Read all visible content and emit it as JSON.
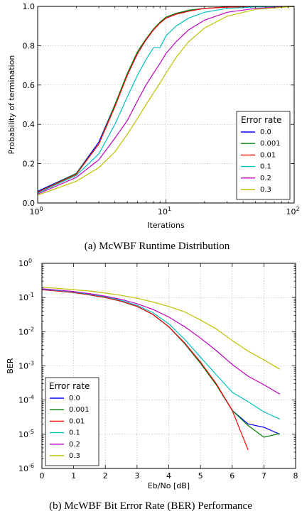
{
  "chart_data": [
    {
      "type": "line",
      "xscale": "log",
      "xlim": [
        1,
        100
      ],
      "ylim": [
        0,
        1
      ],
      "xlabel": "Iterations",
      "ylabel": "Probability of termination",
      "xticks": [
        1,
        10,
        100
      ],
      "xtick_labels": [
        [
          "10",
          "0"
        ],
        [
          "10",
          "1"
        ],
        [
          "10",
          "2"
        ]
      ],
      "yticks": [
        0,
        0.2,
        0.4,
        0.6,
        0.8,
        1.0
      ],
      "ytick_labels": [
        "0.0",
        "0.2",
        "0.4",
        "0.6",
        "0.8",
        "1.0"
      ],
      "grid": true,
      "legend_placement": "lower-right",
      "legend_title": "Error rate",
      "caption": "(a) McWBF Runtime Distribution",
      "series": [
        {
          "name": "0.0",
          "color": "#0000ff",
          "x": [
            1,
            2,
            3,
            4,
            5,
            6,
            7,
            8,
            9,
            10,
            12,
            15,
            20,
            30,
            50,
            100
          ],
          "y": [
            0.06,
            0.15,
            0.31,
            0.5,
            0.65,
            0.76,
            0.83,
            0.88,
            0.92,
            0.94,
            0.96,
            0.98,
            0.99,
            0.997,
            0.999,
            1.0
          ]
        },
        {
          "name": "0.001",
          "color": "#008000",
          "x": [
            1,
            2,
            3,
            4,
            5,
            6,
            7,
            8,
            9,
            10,
            12,
            15,
            20,
            30,
            50,
            100
          ],
          "y": [
            0.055,
            0.15,
            0.3,
            0.5,
            0.66,
            0.77,
            0.835,
            0.885,
            0.92,
            0.945,
            0.965,
            0.98,
            0.99,
            0.997,
            0.999,
            1.0
          ]
        },
        {
          "name": "0.01",
          "color": "#ff0000",
          "x": [
            1,
            2,
            3,
            4,
            5,
            6,
            7,
            8,
            9,
            10,
            12,
            15,
            20,
            30,
            50,
            100
          ],
          "y": [
            0.055,
            0.145,
            0.3,
            0.49,
            0.65,
            0.76,
            0.83,
            0.88,
            0.915,
            0.94,
            0.96,
            0.975,
            0.99,
            0.996,
            0.999,
            1.0
          ]
        },
        {
          "name": "0.1",
          "color": "#00bfbf",
          "x": [
            1,
            2,
            3,
            4,
            5,
            6,
            7,
            8,
            9,
            10,
            12,
            15,
            20,
            30,
            50,
            100
          ],
          "y": [
            0.05,
            0.14,
            0.25,
            0.4,
            0.54,
            0.65,
            0.73,
            0.79,
            0.79,
            0.85,
            0.9,
            0.94,
            0.97,
            0.99,
            0.997,
            1.0
          ]
        },
        {
          "name": "0.2",
          "color": "#bf00bf",
          "x": [
            1,
            2,
            3,
            4,
            5,
            6,
            7,
            8,
            9,
            10,
            12,
            15,
            20,
            30,
            50,
            100
          ],
          "y": [
            0.045,
            0.13,
            0.22,
            0.33,
            0.42,
            0.52,
            0.6,
            0.66,
            0.71,
            0.76,
            0.82,
            0.88,
            0.93,
            0.97,
            0.99,
            1.0
          ]
        },
        {
          "name": "0.3",
          "color": "#bfbf00",
          "x": [
            1,
            2,
            3,
            4,
            5,
            6,
            7,
            8,
            9,
            10,
            12,
            15,
            20,
            30,
            50,
            100
          ],
          "y": [
            0.04,
            0.11,
            0.18,
            0.26,
            0.35,
            0.43,
            0.5,
            0.56,
            0.61,
            0.66,
            0.74,
            0.82,
            0.89,
            0.95,
            0.985,
            1.0
          ]
        }
      ]
    },
    {
      "type": "line",
      "yscale": "log",
      "xlim": [
        0,
        8
      ],
      "ylim": [
        1e-06,
        1
      ],
      "xlabel": "Eb/No [dB]",
      "ylabel": "BER",
      "xticks": [
        0,
        1,
        2,
        3,
        4,
        5,
        6,
        7,
        8
      ],
      "xtick_labels": [
        "0",
        "1",
        "2",
        "3",
        "4",
        "5",
        "6",
        "7",
        "8"
      ],
      "yticks": [
        -6,
        -5,
        -4,
        -3,
        -2,
        -1,
        0
      ],
      "ytick_labels": [
        [
          "10",
          "-6"
        ],
        [
          "10",
          "-5"
        ],
        [
          "10",
          "-4"
        ],
        [
          "10",
          "-3"
        ],
        [
          "10",
          "-2"
        ],
        [
          "10",
          "-1"
        ],
        [
          "10",
          "0"
        ]
      ],
      "grid": true,
      "legend_placement": "lower-left",
      "legend_title": "Error rate",
      "caption": "(b) McWBF Bit Error Rate (BER) Performance",
      "series": [
        {
          "name": "0.0",
          "color": "#0000ff",
          "x": [
            0,
            0.5,
            1,
            1.5,
            2,
            2.5,
            3,
            3.5,
            4,
            4.5,
            5,
            5.5,
            6,
            6.5,
            7,
            7.5
          ],
          "y": [
            0.17,
            0.155,
            0.14,
            0.12,
            0.1,
            0.078,
            0.055,
            0.032,
            0.014,
            0.0045,
            0.0012,
            0.00028,
            5e-05,
            2e-05,
            1.6e-05,
            1e-05
          ]
        },
        {
          "name": "0.001",
          "color": "#008000",
          "x": [
            0,
            0.5,
            1,
            1.5,
            2,
            2.5,
            3,
            3.5,
            4,
            4.5,
            5,
            5.5,
            6,
            6.5,
            7,
            7.5
          ],
          "y": [
            0.17,
            0.155,
            0.14,
            0.12,
            0.1,
            0.078,
            0.055,
            0.032,
            0.014,
            0.0045,
            0.0012,
            0.00028,
            5e-05,
            1.8e-05,
            8.2e-06,
            1.05e-05
          ]
        },
        {
          "name": "0.01",
          "color": "#ff0000",
          "x": [
            0,
            0.5,
            1,
            1.5,
            2,
            2.5,
            3,
            3.5,
            4,
            4.5,
            5,
            5.5,
            6,
            6.5
          ],
          "y": [
            0.17,
            0.155,
            0.14,
            0.12,
            0.1,
            0.078,
            0.055,
            0.032,
            0.014,
            0.0047,
            0.0013,
            0.0003,
            5e-05,
            3.5e-06
          ]
        },
        {
          "name": "0.1",
          "color": "#00bfbf",
          "x": [
            0,
            0.5,
            1,
            1.5,
            2,
            2.5,
            3,
            3.5,
            4,
            4.5,
            5,
            5.5,
            6,
            6.5,
            7,
            7.5
          ],
          "y": [
            0.175,
            0.16,
            0.145,
            0.125,
            0.105,
            0.082,
            0.059,
            0.036,
            0.017,
            0.006,
            0.0018,
            0.00055,
            0.00017,
            9e-05,
            4.5e-05,
            2.8e-05
          ]
        },
        {
          "name": "0.2",
          "color": "#bf00bf",
          "x": [
            0,
            0.5,
            1,
            1.5,
            2,
            2.5,
            3,
            3.5,
            4,
            4.5,
            5,
            5.5,
            6,
            6.5,
            7,
            7.5
          ],
          "y": [
            0.18,
            0.165,
            0.15,
            0.13,
            0.11,
            0.088,
            0.066,
            0.045,
            0.027,
            0.014,
            0.0065,
            0.0028,
            0.0011,
            0.0005,
            0.00028,
            0.00015
          ]
        },
        {
          "name": "0.3",
          "color": "#bfbf00",
          "x": [
            0,
            0.5,
            1,
            1.5,
            2,
            2.5,
            3,
            3.5,
            4,
            4.5,
            5,
            5.5,
            6,
            6.5,
            7,
            7.5
          ],
          "y": [
            0.2,
            0.185,
            0.17,
            0.155,
            0.135,
            0.115,
            0.095,
            0.074,
            0.055,
            0.038,
            0.022,
            0.012,
            0.0055,
            0.0027,
            0.0015,
            0.0008
          ]
        }
      ]
    }
  ]
}
